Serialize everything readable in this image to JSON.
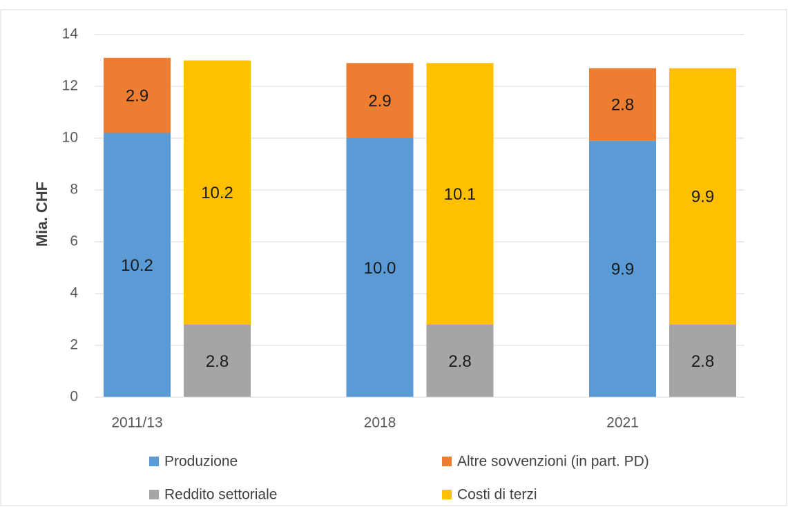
{
  "chart_data": {
    "type": "stacked_bar",
    "y_label": "Mia. CHF",
    "categories": [
      "2011/13",
      "2018",
      "2021"
    ],
    "ylim": [
      0,
      14
    ],
    "yticks": [
      0,
      2,
      4,
      6,
      8,
      10,
      12,
      14
    ],
    "grid": true,
    "legend": "bottom",
    "series": [
      {
        "name": "Produzione",
        "color": "#5b9bd5",
        "stack": 0,
        "values": [
          10.2,
          10,
          9.9
        ],
        "value_labels": [
          "10.2",
          "10.0",
          "9.9"
        ]
      },
      {
        "name": "Altre sovvenzioni (in part. PD)",
        "color": "#ed7d31",
        "stack": 0,
        "values": [
          2.9,
          2.9,
          2.8
        ],
        "value_labels": [
          "2.9",
          "2.9",
          "2.8"
        ]
      },
      {
        "name": "Reddito settoriale",
        "color": "#a5a5a5",
        "stack": 1,
        "values": [
          2.8,
          2.8,
          2.8
        ],
        "value_labels": [
          "2.8",
          "2.8",
          "2.8"
        ]
      },
      {
        "name": "Costi di terzi",
        "color": "#ffc000",
        "stack": 1,
        "values": [
          10.2,
          10.1,
          9.9
        ],
        "value_labels": [
          "10.2",
          "10.1",
          "9.9"
        ]
      }
    ]
  }
}
